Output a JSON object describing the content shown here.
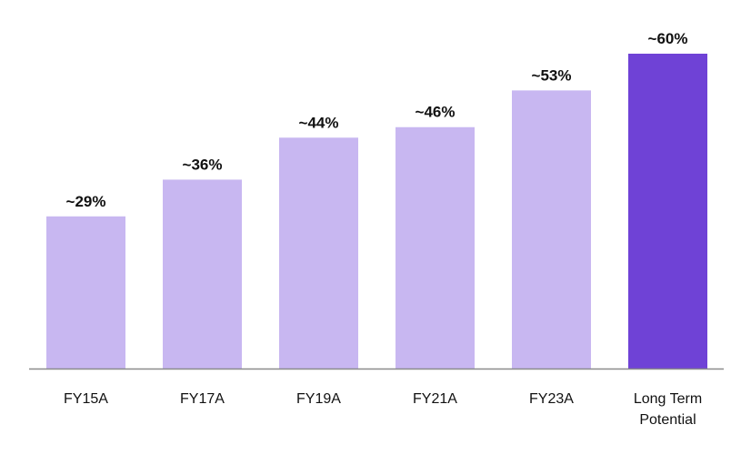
{
  "chart_data": {
    "type": "bar",
    "categories": [
      [
        "FY15A"
      ],
      [
        "FY17A"
      ],
      [
        "FY19A"
      ],
      [
        "FY21A"
      ],
      [
        "FY23A"
      ],
      [
        "Long Term",
        "Potential"
      ]
    ],
    "values": [
      29,
      36,
      44,
      46,
      53,
      60
    ],
    "value_labels": [
      "~29%",
      "~36%",
      "~44%",
      "~46%",
      "~53%",
      "~60%"
    ],
    "ylim": [
      0,
      60
    ],
    "grid": false,
    "colors": {
      "bar": "#c8b7f1",
      "highlight_bar": "#6f42d6",
      "axis": "#8a8a8a"
    },
    "highlight_index": 5
  }
}
